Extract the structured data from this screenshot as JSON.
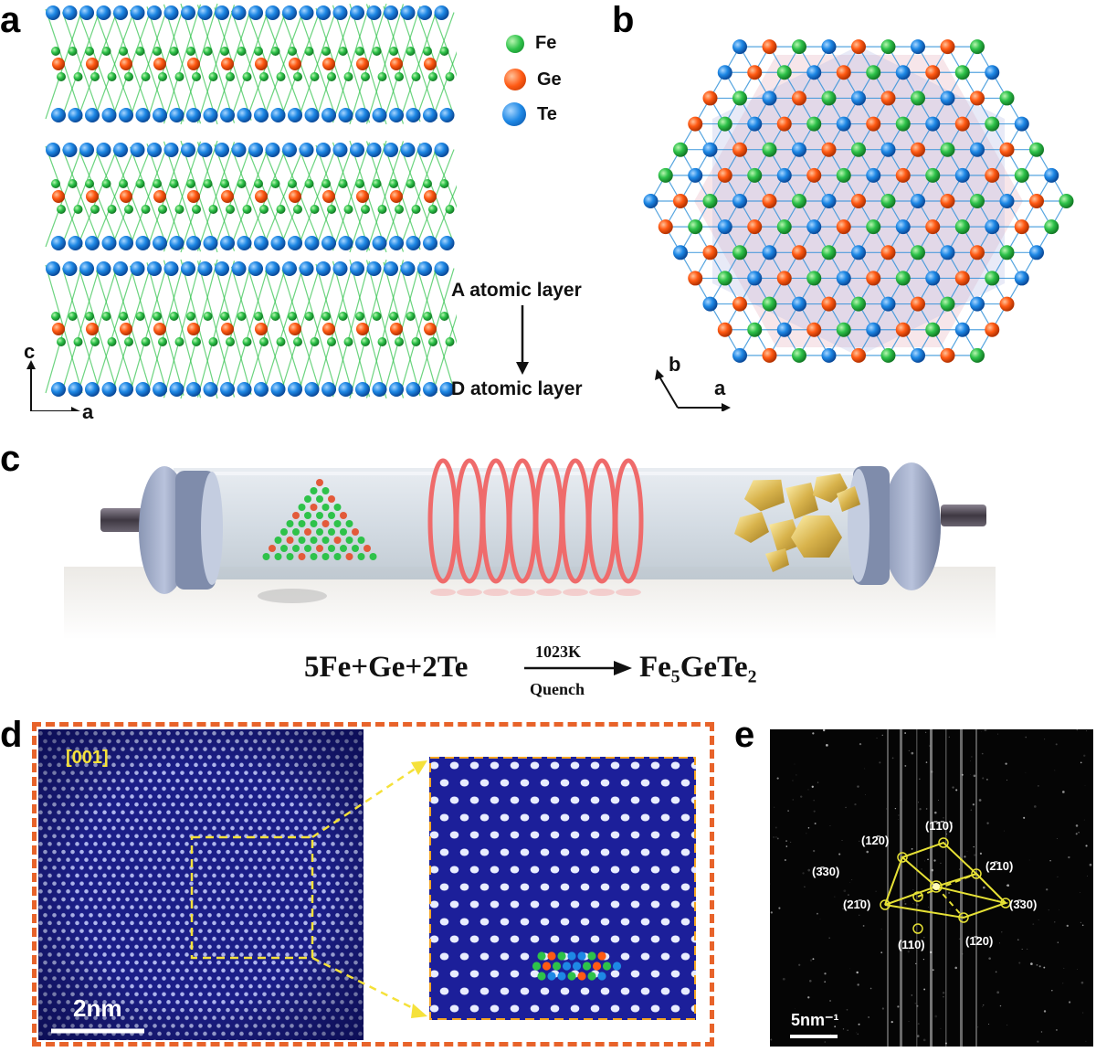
{
  "panels": {
    "a": {
      "label": "a",
      "legend": [
        {
          "element": "Fe",
          "color": "#2ec24a"
        },
        {
          "element": "Ge",
          "color": "#ff5a14"
        },
        {
          "element": "Te",
          "color": "#1e88e5"
        }
      ],
      "layer_top": "A atomic layer",
      "layer_bottom": "D atomic layer",
      "axis_vertical": "c",
      "axis_horizontal": "a"
    },
    "b": {
      "label": "b",
      "axis_diagonal": "b",
      "axis_horizontal": "a"
    },
    "c": {
      "label": "c",
      "equation": {
        "reactants": "5Fe+Ge+2Te",
        "condition_top": "1023K",
        "condition_bottom": "Quench",
        "product": "Fe₅GeTe₂"
      }
    },
    "d": {
      "label": "d",
      "zone_axis": "[001]",
      "scale_bar": "2nm",
      "frame_color": "#e8632a"
    },
    "e": {
      "label": "e",
      "scale_bar": "5nm⁻¹",
      "reflections": [
        "(1̄1̄0)",
        "(12̄0)",
        "(3̄30)",
        "(2̄10)",
        "(21̄0)",
        "(3̄30)",
        "(110)",
        "(1̄20)"
      ]
    }
  }
}
